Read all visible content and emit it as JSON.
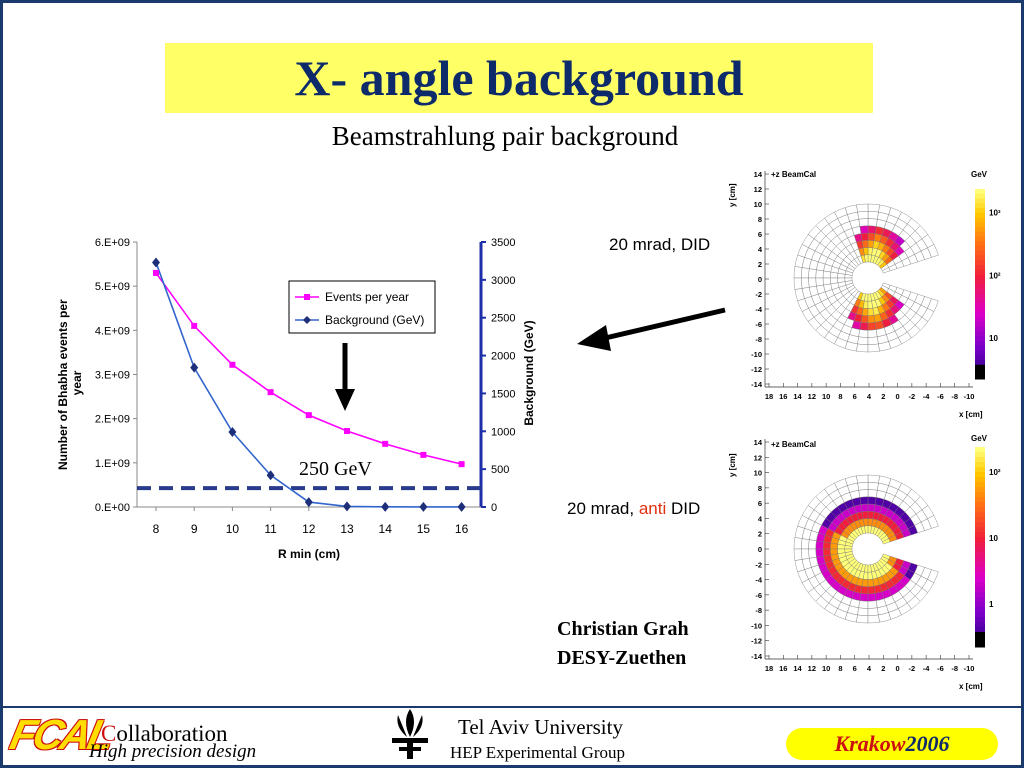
{
  "title": "X- angle background",
  "subtitle": "Beamstrahlung pair background",
  "chart_data": {
    "type": "line",
    "x": [
      8,
      9,
      10,
      11,
      12,
      13,
      14,
      15,
      16
    ],
    "xlabel": "R min (cm)",
    "ylabel_left": "Number of Bhabha events per year",
    "ylabel_right": "Background (GeV)",
    "xticks": [
      "8",
      "9",
      "10",
      "11",
      "12",
      "13",
      "14",
      "15",
      "16"
    ],
    "yticks_left": [
      "0.E+00",
      "1.E+09",
      "2.E+09",
      "3.E+09",
      "4.E+09",
      "5.E+09",
      "6.E+09"
    ],
    "yticks_right": [
      "0",
      "500",
      "1000",
      "1500",
      "2000",
      "2500",
      "3000",
      "3500"
    ],
    "ylim_left": [
      0,
      6000000000
    ],
    "ylim_right": [
      0,
      3500
    ],
    "series": [
      {
        "name": "Events per year",
        "axis": "left",
        "color": "#ff00ff",
        "marker": "square",
        "values": [
          5300000000,
          4100000000,
          3220000000,
          2600000000,
          2080000000,
          1720000000,
          1430000000,
          1180000000,
          970000000
        ]
      },
      {
        "name": "Background (GeV)",
        "axis": "right",
        "color": "#3366cc",
        "marker": "diamond",
        "values": [
          3230,
          1840,
          990,
          420,
          65,
          8,
          2,
          1,
          1
        ]
      }
    ],
    "threshold": {
      "label": "250 GeV",
      "value": 250
    },
    "legend_position": "top-right"
  },
  "plots": [
    {
      "label_pre": "20 mrad, ",
      "label_em": "",
      "label_post": "DID",
      "title": "+z BeamCal",
      "unit": "GeV",
      "xlabel": "x [cm]",
      "ylabel": "y [cm]",
      "scale": [
        "10³",
        "10²",
        "10"
      ]
    },
    {
      "label_pre": "20 mrad, ",
      "label_em": "anti",
      "label_post": " DID",
      "title": "+z BeamCal",
      "unit": "GeV",
      "xlabel": "x [cm]",
      "ylabel": "y [cm]",
      "scale": [
        "10²",
        "10",
        "1"
      ]
    }
  ],
  "plot_axis_ticks": {
    "y": [
      "14",
      "12",
      "10",
      "8",
      "6",
      "4",
      "2",
      "0",
      "-2",
      "-4",
      "-6",
      "-8",
      "-10",
      "-12",
      "-14"
    ],
    "x": [
      "18",
      "16",
      "14",
      "12",
      "10",
      "8",
      "6",
      "4",
      "2",
      "0",
      "-2",
      "-4",
      "-6",
      "-8",
      "-10"
    ]
  },
  "author": {
    "name": "Christian Grah",
    "institute": "DESY-Zuethen"
  },
  "footer": {
    "logo": "FCAL",
    "collab_initial": "C",
    "collab_rest": "ollaboration",
    "tagline": "High precision design",
    "university": "Tel Aviv University",
    "group": "HEP Experimental Group",
    "conference_city": "Krakow",
    "conference_year": "2006"
  },
  "colors": {
    "title_bg": "#ffff66",
    "title_text": "#0d2a6a",
    "accent_red": "#cc1010",
    "dashed_line": "#2a3a8c"
  }
}
